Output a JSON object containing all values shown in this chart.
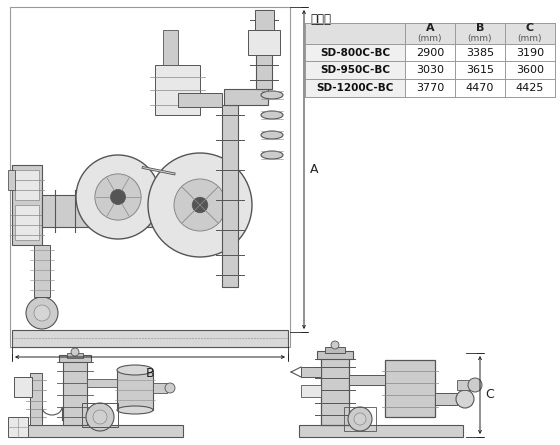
{
  "table_title": "寸法表",
  "col_headers": [
    "",
    "A\n(mm)",
    "B\n(mm)",
    "C\n(mm)"
  ],
  "rows": [
    [
      "SD-800C-BC",
      "2900",
      "3385",
      "3190"
    ],
    [
      "SD-950C-BC",
      "3030",
      "3615",
      "3600"
    ],
    [
      "SD-1200C-BC",
      "3770",
      "4470",
      "4425"
    ]
  ],
  "bg_color": "#ffffff",
  "line_color": "#444444",
  "dim_color": "#222222",
  "mach_color": "#888888",
  "mach_fill": "#cccccc",
  "mach_dark": "#555555",
  "mach_light": "#e8e8e8",
  "table_header_bg": "#e0e0e0",
  "table_model_bg": "#f0f0f0",
  "table_border": "#999999"
}
